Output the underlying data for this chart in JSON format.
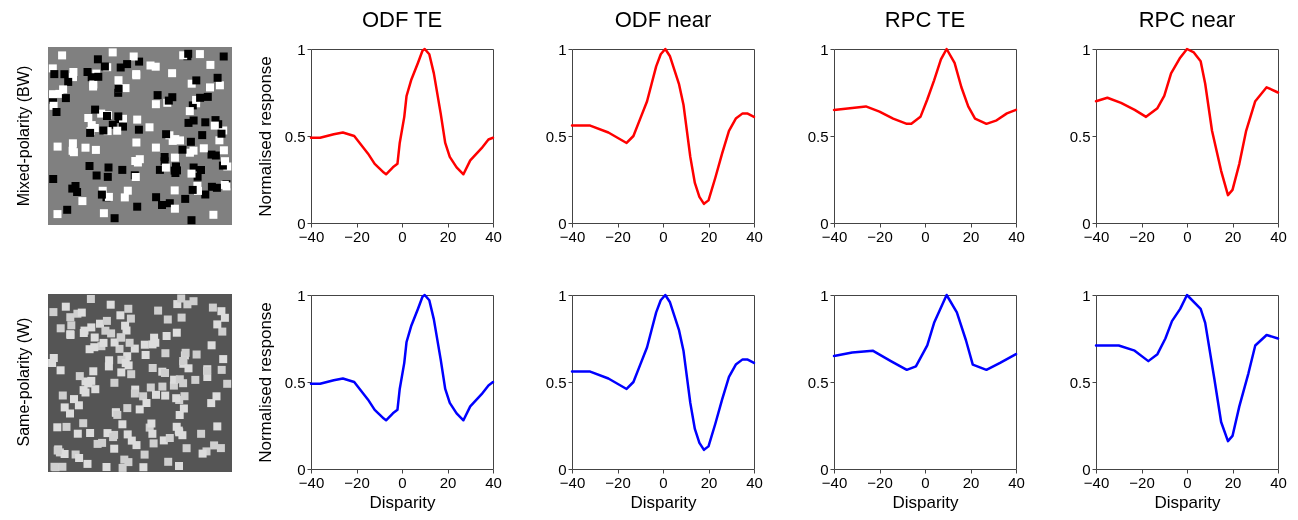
{
  "chart_data": [
    {
      "type": "line",
      "title": "ODF TE",
      "ylabel": "Normalised response",
      "annotations": [
        "Mixed-polarity (BW)"
      ],
      "xlim": [
        -40,
        40
      ],
      "xticks": [
        -40,
        -20,
        0,
        20,
        40
      ],
      "ylim": [
        0,
        1
      ],
      "yticks": [
        0,
        0.5,
        1
      ],
      "x": [
        -40,
        -36,
        -30,
        -26,
        -21,
        -15,
        -12,
        -8,
        -7,
        -4,
        -2,
        -1,
        1,
        2,
        4,
        7,
        9,
        10,
        12,
        14,
        17,
        19,
        21,
        24,
        27,
        30,
        35,
        38,
        40
      ],
      "series": [
        {
          "color": "#ff0000",
          "values": [
            0.49,
            0.49,
            0.51,
            0.52,
            0.5,
            0.4,
            0.34,
            0.29,
            0.28,
            0.32,
            0.34,
            0.46,
            0.61,
            0.73,
            0.82,
            0.92,
            0.99,
            1.0,
            0.97,
            0.86,
            0.63,
            0.46,
            0.38,
            0.32,
            0.28,
            0.36,
            0.43,
            0.48,
            0.49
          ]
        }
      ]
    },
    {
      "type": "line",
      "title": "ODF near",
      "xlim": [
        -40,
        40
      ],
      "xticks": [
        -40,
        -20,
        0,
        20,
        40
      ],
      "ylim": [
        0,
        1
      ],
      "yticks": [
        0,
        0.5,
        1
      ],
      "x": [
        -40,
        -32,
        -24,
        -20,
        -16,
        -13,
        -10,
        -7,
        -5,
        -3,
        -1,
        1,
        3,
        5,
        7,
        9,
        12,
        14,
        16,
        18,
        20,
        23,
        26,
        29,
        32,
        35,
        37,
        40
      ],
      "series": [
        {
          "color": "#ff0000",
          "values": [
            0.56,
            0.56,
            0.52,
            0.49,
            0.46,
            0.5,
            0.6,
            0.7,
            0.8,
            0.9,
            0.97,
            1.0,
            0.96,
            0.88,
            0.8,
            0.68,
            0.38,
            0.23,
            0.15,
            0.11,
            0.13,
            0.26,
            0.4,
            0.53,
            0.6,
            0.63,
            0.63,
            0.61
          ]
        }
      ]
    },
    {
      "type": "line",
      "title": "RPC TE",
      "xlim": [
        -40,
        40
      ],
      "xticks": [
        -40,
        -20,
        0,
        20,
        40
      ],
      "ylim": [
        0,
        1
      ],
      "yticks": [
        0,
        0.5,
        1
      ],
      "x": [
        -40,
        -33,
        -26,
        -20,
        -14,
        -8,
        -6,
        -2,
        1,
        4,
        7,
        9.5,
        13,
        16,
        19,
        22,
        27,
        31.5,
        36,
        40
      ],
      "series": [
        {
          "color": "#ff0000",
          "values": [
            0.65,
            0.66,
            0.67,
            0.64,
            0.6,
            0.57,
            0.57,
            0.61,
            0.71,
            0.82,
            0.94,
            1.0,
            0.92,
            0.78,
            0.67,
            0.6,
            0.57,
            0.59,
            0.63,
            0.65
          ]
        }
      ]
    },
    {
      "type": "line",
      "title": "RPC near",
      "xlim": [
        -40,
        40
      ],
      "xticks": [
        -40,
        -20,
        0,
        20,
        40
      ],
      "ylim": [
        0,
        1
      ],
      "yticks": [
        0,
        0.5,
        1
      ],
      "x": [
        -40,
        -35,
        -29,
        -23,
        -18,
        -13,
        -10,
        -7,
        -3,
        0,
        3,
        6,
        8,
        11,
        15,
        18,
        20,
        23,
        26,
        30,
        35,
        40
      ],
      "series": [
        {
          "color": "#ff0000",
          "values": [
            0.7,
            0.72,
            0.69,
            0.65,
            0.61,
            0.66,
            0.73,
            0.86,
            0.95,
            1.0,
            0.98,
            0.93,
            0.8,
            0.53,
            0.3,
            0.16,
            0.19,
            0.34,
            0.53,
            0.7,
            0.78,
            0.75
          ]
        }
      ]
    },
    {
      "type": "line",
      "xlabel": "Disparity",
      "ylabel": "Normalised response",
      "annotations": [
        "Same-polarity (W)"
      ],
      "xlim": [
        -40,
        40
      ],
      "xticks": [
        -40,
        -20,
        0,
        20,
        40
      ],
      "ylim": [
        0,
        1
      ],
      "yticks": [
        0,
        0.5,
        1
      ],
      "x": [
        -40,
        -36,
        -30,
        -26,
        -21,
        -15,
        -12,
        -8,
        -7,
        -4,
        -2,
        -1,
        1,
        2,
        4,
        7,
        9,
        10,
        12,
        14,
        17,
        19,
        21,
        24,
        27,
        30,
        35,
        38,
        40
      ],
      "series": [
        {
          "color": "#0000ff",
          "values": [
            0.49,
            0.49,
            0.51,
            0.52,
            0.5,
            0.4,
            0.34,
            0.29,
            0.28,
            0.32,
            0.34,
            0.46,
            0.61,
            0.73,
            0.82,
            0.92,
            0.99,
            1.0,
            0.97,
            0.86,
            0.63,
            0.46,
            0.38,
            0.32,
            0.28,
            0.36,
            0.43,
            0.48,
            0.5
          ]
        }
      ]
    },
    {
      "type": "line",
      "xlabel": "Disparity",
      "xlim": [
        -40,
        40
      ],
      "xticks": [
        -40,
        -20,
        0,
        20,
        40
      ],
      "ylim": [
        0,
        1
      ],
      "yticks": [
        0,
        0.5,
        1
      ],
      "x": [
        -40,
        -32,
        -24,
        -20,
        -16,
        -13,
        -10,
        -7,
        -5,
        -3,
        -1,
        1,
        3,
        5,
        7,
        9,
        12,
        14,
        16,
        18,
        20,
        23,
        26,
        29,
        32,
        35,
        37,
        40
      ],
      "series": [
        {
          "color": "#0000ff",
          "values": [
            0.56,
            0.56,
            0.52,
            0.49,
            0.46,
            0.5,
            0.6,
            0.7,
            0.8,
            0.9,
            0.97,
            1.0,
            0.96,
            0.88,
            0.8,
            0.68,
            0.38,
            0.23,
            0.15,
            0.11,
            0.13,
            0.26,
            0.4,
            0.53,
            0.6,
            0.63,
            0.63,
            0.61
          ]
        }
      ]
    },
    {
      "type": "line",
      "xlabel": "Disparity",
      "xlim": [
        -40,
        40
      ],
      "xticks": [
        -40,
        -20,
        0,
        20,
        40
      ],
      "ylim": [
        0,
        1
      ],
      "yticks": [
        0,
        0.5,
        1
      ],
      "x": [
        -40,
        -32,
        -23,
        -15,
        -8,
        -4,
        1,
        4,
        9.5,
        14,
        18,
        21,
        27,
        33,
        40
      ],
      "series": [
        {
          "color": "#0000ff",
          "values": [
            0.65,
            0.67,
            0.68,
            0.62,
            0.57,
            0.59,
            0.71,
            0.84,
            1.0,
            0.9,
            0.74,
            0.6,
            0.57,
            0.61,
            0.66
          ]
        }
      ]
    },
    {
      "type": "line",
      "xlabel": "Disparity",
      "xlim": [
        -40,
        40
      ],
      "xticks": [
        -40,
        -20,
        0,
        20,
        40
      ],
      "ylim": [
        0,
        1
      ],
      "yticks": [
        0,
        0.5,
        1
      ],
      "x": [
        -40,
        -30,
        -23,
        -17,
        -13,
        -9.5,
        -6.6,
        -3,
        0,
        6,
        8,
        12,
        15,
        18,
        20,
        23,
        27,
        30,
        35,
        40
      ],
      "series": [
        {
          "color": "#0000ff",
          "values": [
            0.71,
            0.71,
            0.68,
            0.62,
            0.66,
            0.75,
            0.85,
            0.92,
            1.0,
            0.92,
            0.84,
            0.52,
            0.27,
            0.16,
            0.19,
            0.36,
            0.55,
            0.71,
            0.77,
            0.75
          ]
        }
      ]
    }
  ]
}
